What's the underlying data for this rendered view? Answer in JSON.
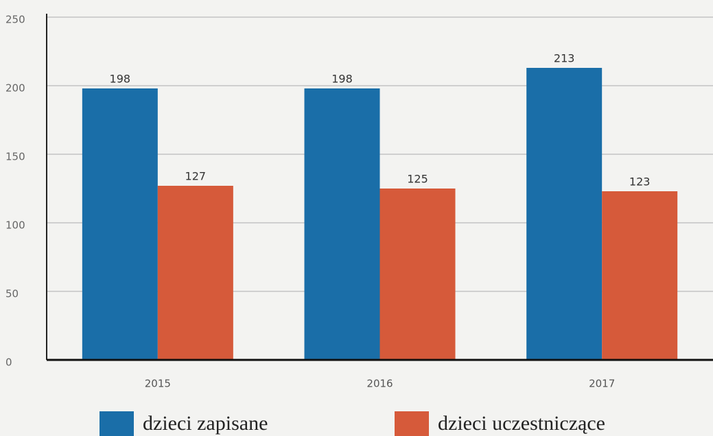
{
  "chart_data": {
    "type": "bar",
    "categories": [
      "2015",
      "2016",
      "2017"
    ],
    "series": [
      {
        "name": "dzieci zapisane",
        "color": "#1a6ea8",
        "values": [
          198,
          198,
          213
        ]
      },
      {
        "name": "dzieci uczestniczące",
        "color": "#d65a3a",
        "values": [
          127,
          125,
          123
        ]
      }
    ],
    "ylim": [
      0,
      250
    ],
    "yticks": [
      0,
      50,
      100,
      150,
      200,
      250
    ],
    "grid": true,
    "legend": "bottom"
  }
}
